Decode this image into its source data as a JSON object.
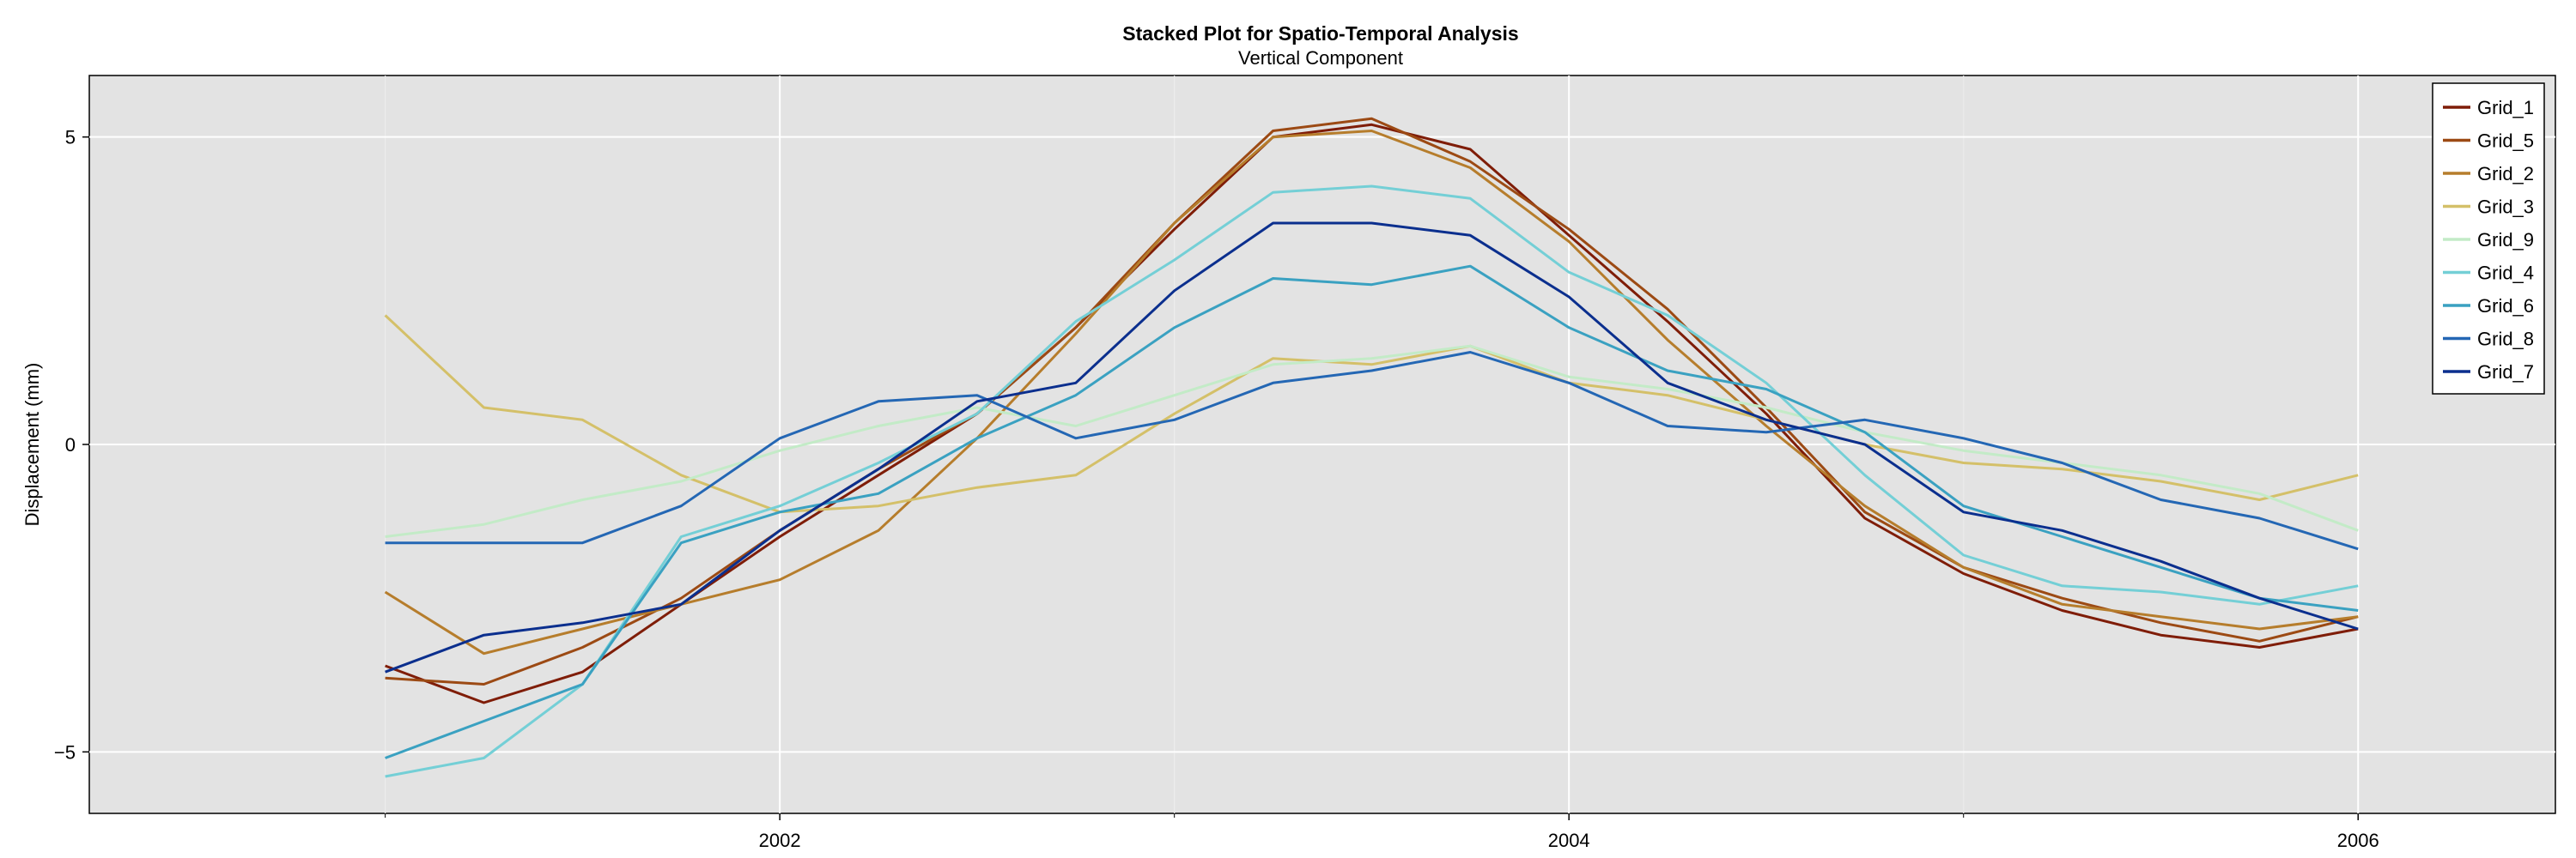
{
  "chart_data": {
    "type": "line",
    "title": "Stacked Plot for Spatio-Temporal Analysis",
    "subtitle": "Vertical Component",
    "xlabel": "",
    "ylabel": "Displacement (mm)",
    "xlim": [
      2000.25,
      2006.5
    ],
    "ylim": [
      -6,
      6
    ],
    "x_ticks": [
      2002,
      2004,
      2006
    ],
    "x_tick_labels": [
      "2002",
      "2004",
      "2006"
    ],
    "y_ticks": [
      -5,
      0,
      5
    ],
    "y_tick_labels": [
      "−5",
      "0",
      "5"
    ],
    "grid": true,
    "legend_position": "top-right",
    "background": "#e3e3e3",
    "x": [
      2001.0,
      2001.25,
      2001.5,
      2001.75,
      2002.0,
      2002.25,
      2002.5,
      2002.75,
      2003.0,
      2003.25,
      2003.5,
      2003.75,
      2004.0,
      2004.25,
      2004.5,
      2004.75,
      2005.0,
      2005.25,
      2005.5,
      2005.75,
      2006.0
    ],
    "series": [
      {
        "name": "Grid_1",
        "color": "#7f1d08",
        "values": [
          -3.6,
          -4.2,
          -3.7,
          -2.6,
          -1.5,
          -0.5,
          0.5,
          1.9,
          3.5,
          5.0,
          5.2,
          4.8,
          3.4,
          2.0,
          0.5,
          -1.2,
          -2.1,
          -2.7,
          -3.1,
          -3.3,
          -3.0
        ]
      },
      {
        "name": "Grid_5",
        "color": "#9c4a14",
        "values": [
          -3.8,
          -3.9,
          -3.3,
          -2.5,
          -1.4,
          -0.4,
          0.5,
          1.9,
          3.6,
          5.1,
          5.3,
          4.6,
          3.5,
          2.2,
          0.6,
          -1.1,
          -2.0,
          -2.5,
          -2.9,
          -3.2,
          -2.8
        ]
      },
      {
        "name": "Grid_2",
        "color": "#b67d2c",
        "values": [
          -2.4,
          -3.4,
          -3.0,
          -2.6,
          -2.2,
          -1.4,
          0.1,
          1.8,
          3.6,
          5.0,
          5.1,
          4.5,
          3.3,
          1.7,
          0.3,
          -1.0,
          -2.0,
          -2.6,
          -2.8,
          -3.0,
          -2.8
        ]
      },
      {
        "name": "Grid_3",
        "color": "#d4c069",
        "values": [
          2.1,
          0.6,
          0.4,
          -0.5,
          -1.1,
          -1.0,
          -0.7,
          -0.5,
          0.5,
          1.4,
          1.3,
          1.6,
          1.0,
          0.8,
          0.4,
          0.0,
          -0.3,
          -0.4,
          -0.6,
          -0.9,
          -0.5
        ]
      },
      {
        "name": "Grid_9",
        "color": "#c3ebc7",
        "values": [
          -1.5,
          -1.3,
          -0.9,
          -0.6,
          -0.1,
          0.3,
          0.6,
          0.3,
          0.8,
          1.3,
          1.4,
          1.6,
          1.1,
          0.9,
          0.6,
          0.2,
          -0.1,
          -0.3,
          -0.5,
          -0.8,
          -1.4
        ]
      },
      {
        "name": "Grid_4",
        "color": "#74cfd6",
        "values": [
          -5.4,
          -5.1,
          -3.9,
          -1.5,
          -1.0,
          -0.3,
          0.5,
          2.0,
          3.0,
          4.1,
          4.2,
          4.0,
          2.8,
          2.1,
          1.0,
          -0.5,
          -1.8,
          -2.3,
          -2.4,
          -2.6,
          -2.3
        ]
      },
      {
        "name": "Grid_6",
        "color": "#3aa1c1",
        "values": [
          -5.1,
          -4.5,
          -3.9,
          -1.6,
          -1.1,
          -0.8,
          0.1,
          0.8,
          1.9,
          2.7,
          2.6,
          2.9,
          1.9,
          1.2,
          0.9,
          0.2,
          -1.0,
          -1.5,
          -2.0,
          -2.5,
          -2.7
        ]
      },
      {
        "name": "Grid_8",
        "color": "#2467b4",
        "values": [
          -1.6,
          -1.6,
          -1.6,
          -1.0,
          0.1,
          0.7,
          0.8,
          0.1,
          0.4,
          1.0,
          1.2,
          1.5,
          1.0,
          0.3,
          0.2,
          0.4,
          0.1,
          -0.3,
          -0.9,
          -1.2,
          -1.7
        ]
      },
      {
        "name": "Grid_7",
        "color": "#0b2f8e",
        "values": [
          -3.7,
          -3.1,
          -2.9,
          -2.6,
          -1.4,
          -0.4,
          0.7,
          1.0,
          2.5,
          3.6,
          3.6,
          3.4,
          2.4,
          1.0,
          0.4,
          0.0,
          -1.1,
          -1.4,
          -1.9,
          -2.5,
          -3.0
        ]
      }
    ]
  }
}
